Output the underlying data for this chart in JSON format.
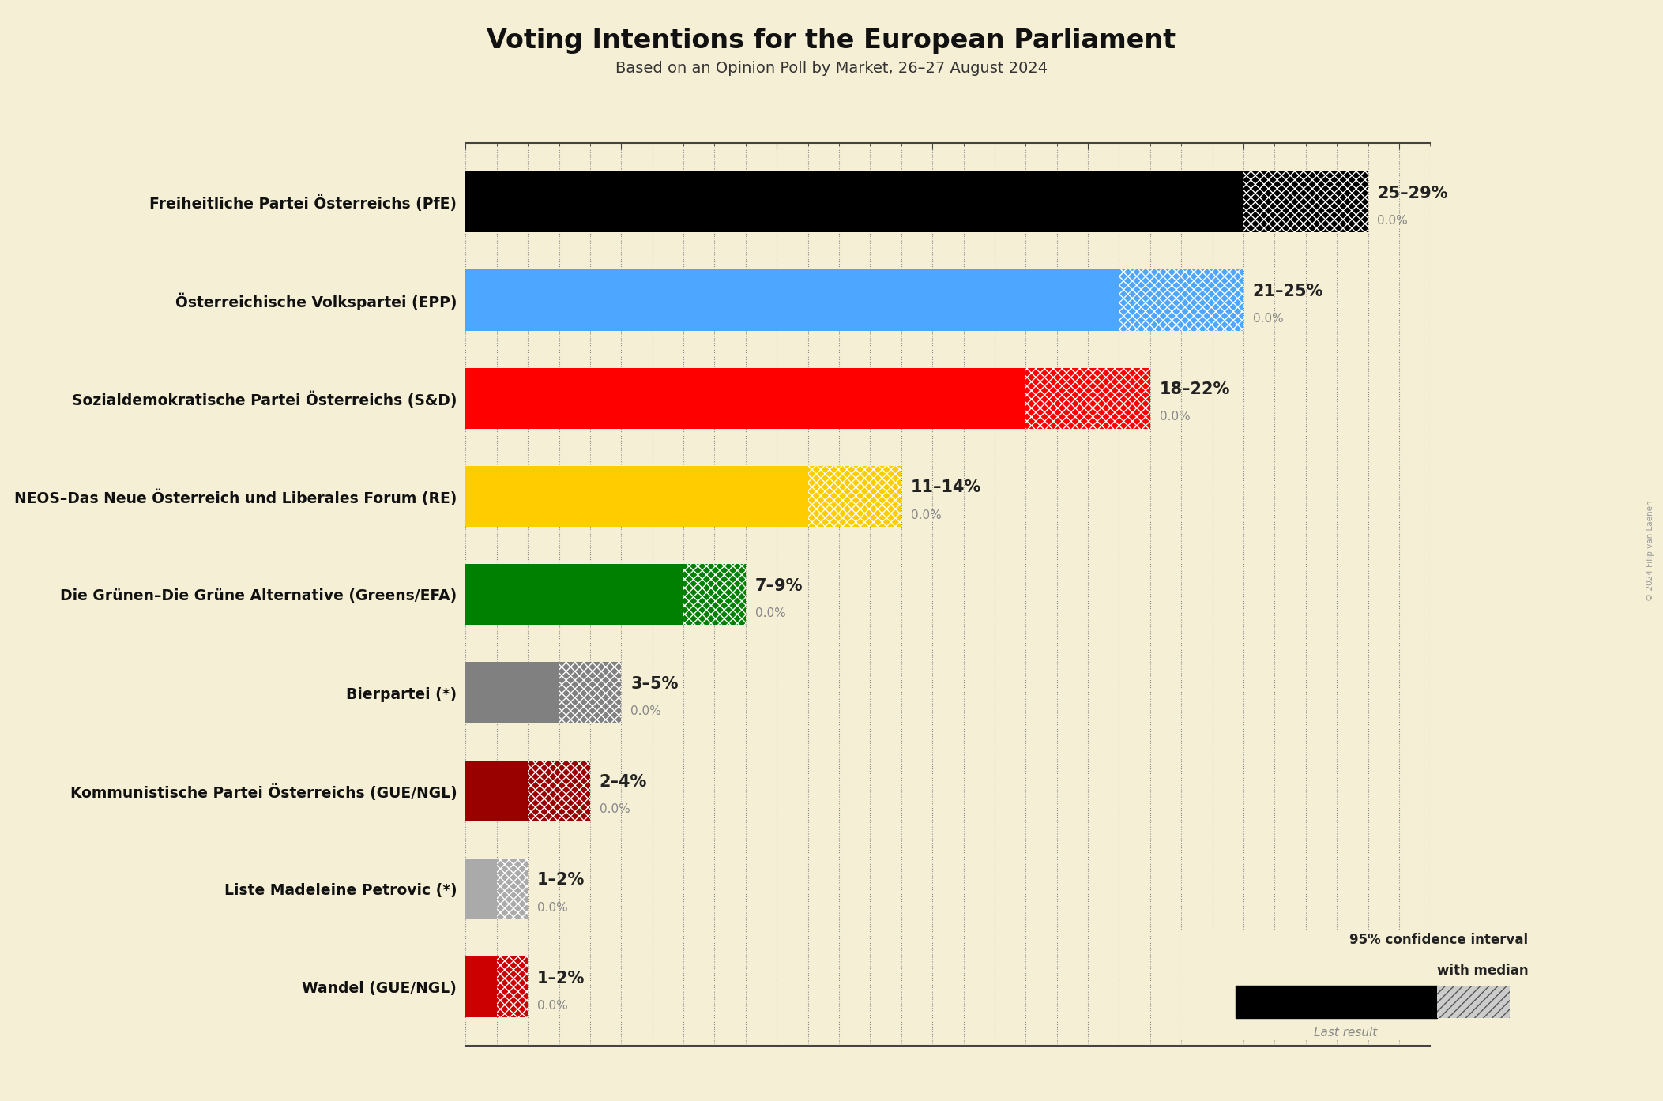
{
  "title": "Voting Intentions for the European Parliament",
  "subtitle": "Based on an Opinion Poll by Market, 26–27 August 2024",
  "copyright": "© 2024 Filip van Laenen",
  "background_color": "#f5f0d5",
  "parties": [
    {
      "name": "Freiheitliche Partei Österreichs (PfE)",
      "median": 25,
      "low": 25,
      "high": 29,
      "last_result": 0.0,
      "color": "#000000",
      "label": "25–29%"
    },
    {
      "name": "Österreichische Volkspartei (EPP)",
      "median": 21,
      "low": 21,
      "high": 25,
      "last_result": 0.0,
      "color": "#4da6ff",
      "label": "21–25%"
    },
    {
      "name": "Sozialdemokratische Partei Österreichs (S&D)",
      "median": 18,
      "low": 18,
      "high": 22,
      "last_result": 0.0,
      "color": "#ff0000",
      "label": "18–22%"
    },
    {
      "name": "NEOS–Das Neue Österreich und Liberales Forum (RE)",
      "median": 11,
      "low": 11,
      "high": 14,
      "last_result": 0.0,
      "color": "#ffcc00",
      "label": "11–14%"
    },
    {
      "name": "Die Grünen–Die Grüne Alternative (Greens/EFA)",
      "median": 7,
      "low": 7,
      "high": 9,
      "last_result": 0.0,
      "color": "#008000",
      "label": "7–9%"
    },
    {
      "name": "Bierpartei (*)",
      "median": 3,
      "low": 3,
      "high": 5,
      "last_result": 0.0,
      "color": "#808080",
      "label": "3–5%"
    },
    {
      "name": "Kommunistische Partei Österreichs (GUE/NGL)",
      "median": 2,
      "low": 2,
      "high": 4,
      "last_result": 0.0,
      "color": "#990000",
      "label": "2–4%"
    },
    {
      "name": "Liste Madeleine Petrovic (*)",
      "median": 1,
      "low": 1,
      "high": 2,
      "last_result": 0.0,
      "color": "#aaaaaa",
      "label": "1–2%"
    },
    {
      "name": "Wandel (GUE/NGL)",
      "median": 1,
      "low": 1,
      "high": 2,
      "last_result": 0.0,
      "color": "#cc0000",
      "label": "1–2%"
    }
  ],
  "xlim": [
    0,
    31
  ],
  "xtick_major_step": 5,
  "legend_text_line1": "95% confidence interval",
  "legend_text_line2": "with median",
  "legend_last_result": "Last result"
}
